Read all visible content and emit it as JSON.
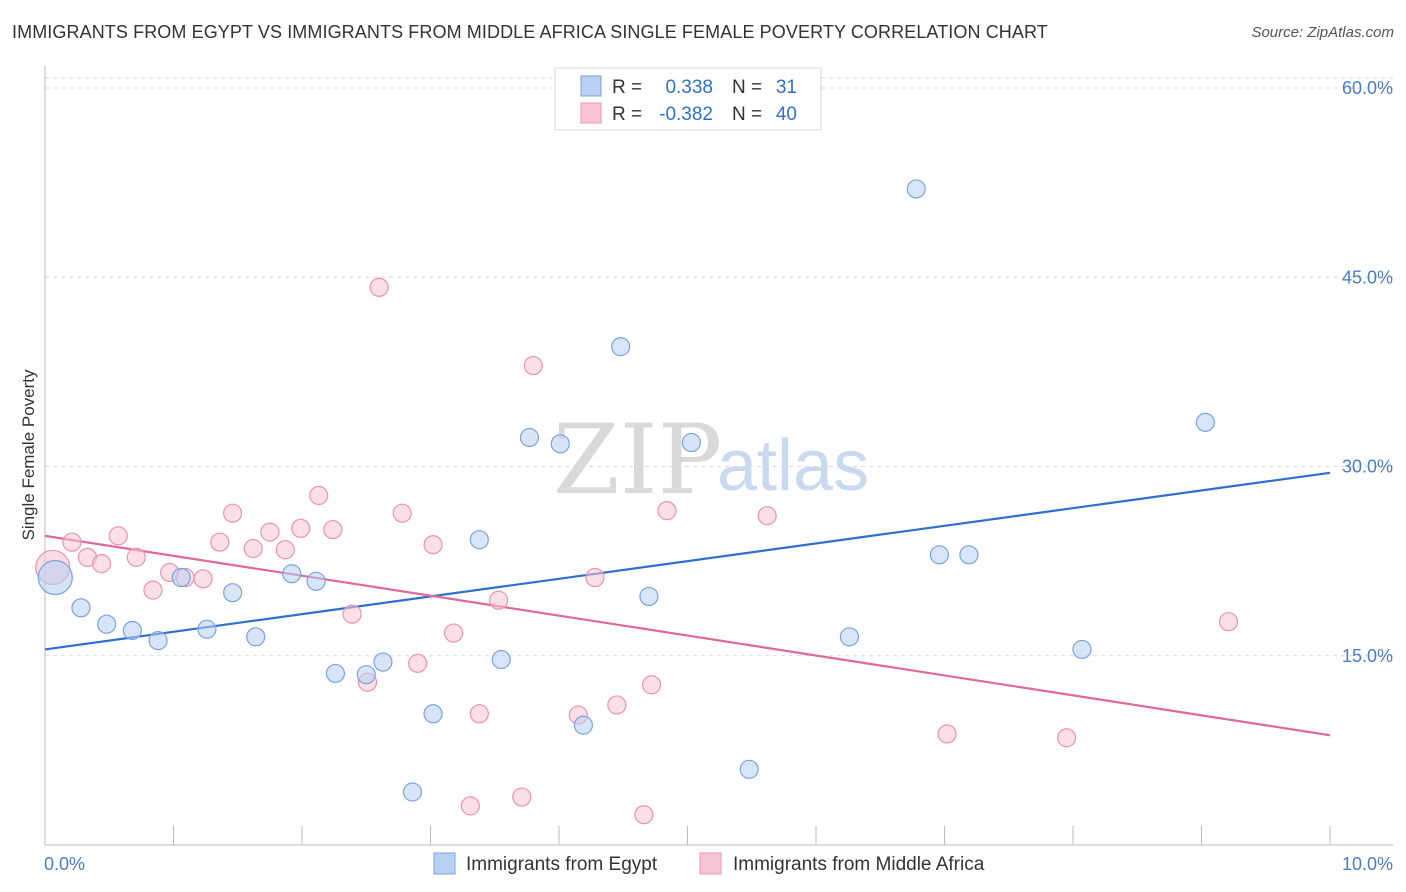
{
  "header": {
    "title": "IMMIGRANTS FROM EGYPT VS IMMIGRANTS FROM MIDDLE AFRICA SINGLE FEMALE POVERTY CORRELATION CHART",
    "source": "Source: ZipAtlas.com"
  },
  "watermark": {
    "zip": "ZIP",
    "atlas": "atlas"
  },
  "legend": {
    "r_label": "R =",
    "n_label": "N =",
    "egypt": {
      "r": "0.338",
      "n": "31"
    },
    "middle_africa": {
      "r": "-0.382",
      "n": "40"
    }
  },
  "colors": {
    "egypt_fill": "#b8d0f2",
    "egypt_stroke": "#7aa3de",
    "egypt_line": "#2f6fcf",
    "africa_fill": "#f7c4d3",
    "africa_stroke": "#eb93ae",
    "africa_line": "#e0689a",
    "grid": "#d9d9d9",
    "axis_text": "#4a7cc7"
  },
  "chart_data": {
    "type": "scatter",
    "title": "IMMIGRANTS FROM EGYPT VS IMMIGRANTS FROM MIDDLE AFRICA SINGLE FEMALE POVERTY CORRELATION CHART",
    "xlabel": "",
    "ylabel": "Single Female Poverty",
    "xlim": [
      0,
      10
    ],
    "ylim": [
      0,
      60
    ],
    "x_tick_labels": [
      "0.0%",
      "10.0%"
    ],
    "y_ticks": [
      15,
      30,
      45,
      60
    ],
    "y_tick_labels": [
      "15.0%",
      "30.0%",
      "45.0%",
      "60.0%"
    ],
    "grid": "horizontal dashed",
    "legend_placement": "top-center",
    "series": [
      {
        "name": "Immigrants from Egypt",
        "r": 0.338,
        "n": 31,
        "trend": {
          "x": [
            0,
            10
          ],
          "y": [
            15.5,
            29.5
          ]
        },
        "points": [
          {
            "x": 0.08,
            "y": 21.2,
            "big": true
          },
          {
            "x": 0.28,
            "y": 18.8
          },
          {
            "x": 0.48,
            "y": 17.5
          },
          {
            "x": 0.68,
            "y": 17.0
          },
          {
            "x": 0.88,
            "y": 16.2
          },
          {
            "x": 1.06,
            "y": 21.2
          },
          {
            "x": 1.26,
            "y": 17.1
          },
          {
            "x": 1.46,
            "y": 20.0
          },
          {
            "x": 1.64,
            "y": 16.5
          },
          {
            "x": 1.92,
            "y": 21.5
          },
          {
            "x": 2.11,
            "y": 20.9
          },
          {
            "x": 2.26,
            "y": 13.6
          },
          {
            "x": 2.5,
            "y": 13.5
          },
          {
            "x": 2.63,
            "y": 14.5
          },
          {
            "x": 3.02,
            "y": 10.4
          },
          {
            "x": 2.86,
            "y": 4.2
          },
          {
            "x": 3.38,
            "y": 24.2
          },
          {
            "x": 3.55,
            "y": 14.7
          },
          {
            "x": 3.77,
            "y": 32.3
          },
          {
            "x": 4.19,
            "y": 9.5
          },
          {
            "x": 4.01,
            "y": 31.8
          },
          {
            "x": 4.48,
            "y": 39.5
          },
          {
            "x": 4.7,
            "y": 19.7
          },
          {
            "x": 5.03,
            "y": 31.9
          },
          {
            "x": 5.48,
            "y": 6.0
          },
          {
            "x": 6.26,
            "y": 16.5
          },
          {
            "x": 6.78,
            "y": 52.0
          },
          {
            "x": 6.96,
            "y": 23.0
          },
          {
            "x": 7.19,
            "y": 23.0
          },
          {
            "x": 8.07,
            "y": 15.5
          },
          {
            "x": 9.03,
            "y": 33.5
          }
        ]
      },
      {
        "name": "Immigrants from Middle Africa",
        "r": -0.382,
        "n": 40,
        "trend": {
          "x": [
            0,
            10
          ],
          "y": [
            24.5,
            8.7
          ]
        },
        "points": [
          {
            "x": 0.06,
            "y": 22.0,
            "big": true
          },
          {
            "x": 0.21,
            "y": 24.0
          },
          {
            "x": 0.33,
            "y": 22.8
          },
          {
            "x": 0.44,
            "y": 22.3
          },
          {
            "x": 0.57,
            "y": 24.5
          },
          {
            "x": 0.71,
            "y": 22.8
          },
          {
            "x": 0.84,
            "y": 20.2
          },
          {
            "x": 0.97,
            "y": 21.6
          },
          {
            "x": 1.09,
            "y": 21.2
          },
          {
            "x": 1.23,
            "y": 21.1
          },
          {
            "x": 1.36,
            "y": 24.0
          },
          {
            "x": 1.46,
            "y": 26.3
          },
          {
            "x": 1.62,
            "y": 23.5
          },
          {
            "x": 1.75,
            "y": 24.8
          },
          {
            "x": 1.87,
            "y": 23.4
          },
          {
            "x": 1.99,
            "y": 25.1
          },
          {
            "x": 2.13,
            "y": 27.7
          },
          {
            "x": 2.24,
            "y": 25.0
          },
          {
            "x": 2.39,
            "y": 18.3
          },
          {
            "x": 2.51,
            "y": 12.9
          },
          {
            "x": 2.6,
            "y": 44.2
          },
          {
            "x": 2.78,
            "y": 26.3
          },
          {
            "x": 2.9,
            "y": 14.4
          },
          {
            "x": 3.02,
            "y": 23.8
          },
          {
            "x": 3.18,
            "y": 16.8
          },
          {
            "x": 3.38,
            "y": 10.4
          },
          {
            "x": 3.53,
            "y": 19.4
          },
          {
            "x": 3.71,
            "y": 3.8
          },
          {
            "x": 3.8,
            "y": 38.0
          },
          {
            "x": 3.31,
            "y": 3.1
          },
          {
            "x": 4.15,
            "y": 10.3
          },
          {
            "x": 4.28,
            "y": 21.2
          },
          {
            "x": 4.45,
            "y": 11.1
          },
          {
            "x": 4.66,
            "y": 2.4
          },
          {
            "x": 4.72,
            "y": 12.7
          },
          {
            "x": 4.84,
            "y": 26.5
          },
          {
            "x": 5.62,
            "y": 26.1
          },
          {
            "x": 7.02,
            "y": 8.8
          },
          {
            "x": 7.95,
            "y": 8.5
          },
          {
            "x": 9.21,
            "y": 17.7
          }
        ]
      }
    ]
  }
}
